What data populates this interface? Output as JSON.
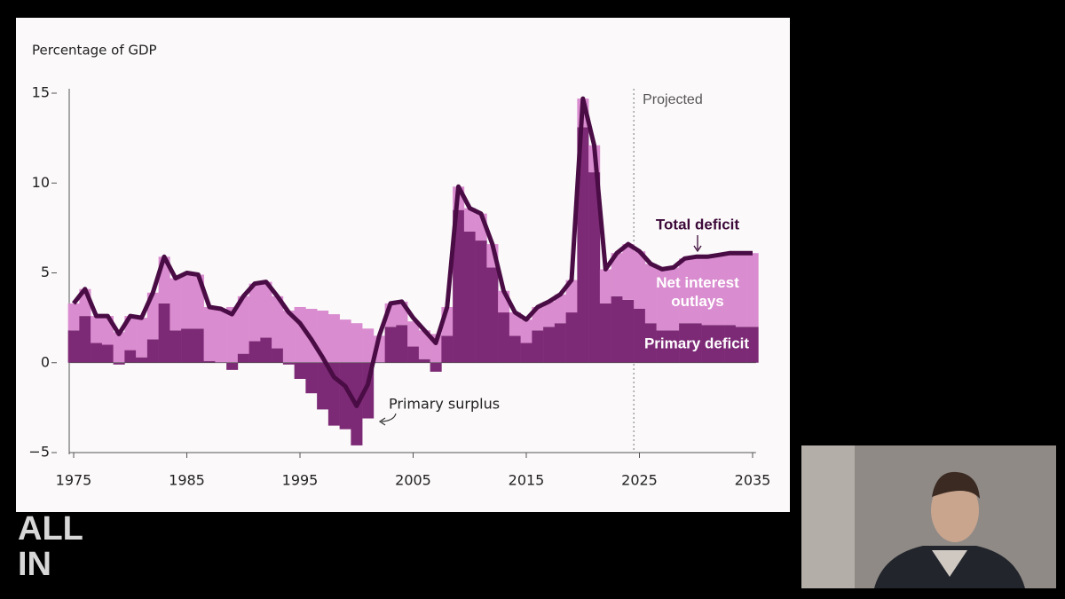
{
  "chart_data": {
    "type": "stacked-bar-line",
    "y_label": "Percentage of GDP",
    "x": [
      1975,
      1976,
      1977,
      1978,
      1979,
      1980,
      1981,
      1982,
      1983,
      1984,
      1985,
      1986,
      1987,
      1988,
      1989,
      1990,
      1991,
      1992,
      1993,
      1994,
      1995,
      1996,
      1997,
      1998,
      1999,
      2000,
      2001,
      2002,
      2003,
      2004,
      2005,
      2006,
      2007,
      2008,
      2009,
      2010,
      2011,
      2012,
      2013,
      2014,
      2015,
      2016,
      2017,
      2018,
      2019,
      2020,
      2021,
      2022,
      2023,
      2024,
      2025,
      2026,
      2027,
      2028,
      2029,
      2030,
      2031,
      2032,
      2033,
      2034,
      2035
    ],
    "series": [
      {
        "name": "Primary deficit",
        "color": "#7d2a76",
        "kind": "bar",
        "values": [
          1.8,
          2.6,
          1.1,
          1.0,
          -0.1,
          0.7,
          0.3,
          1.3,
          3.3,
          1.8,
          1.9,
          1.9,
          0.1,
          0.0,
          -0.4,
          0.5,
          1.2,
          1.4,
          0.8,
          -0.1,
          -0.9,
          -1.7,
          -2.6,
          -3.5,
          -3.7,
          -4.6,
          -3.1,
          0.0,
          2.0,
          2.1,
          0.9,
          0.2,
          -0.5,
          1.5,
          8.5,
          7.3,
          6.8,
          5.3,
          2.8,
          1.5,
          1.1,
          1.8,
          2.0,
          2.2,
          2.8,
          13.1,
          10.6,
          3.3,
          3.7,
          3.5,
          3.0,
          2.2,
          1.8,
          1.8,
          2.2,
          2.2,
          2.1,
          2.1,
          2.1,
          2.0,
          2.0
        ]
      },
      {
        "name": "Net interest outlays",
        "color": "#d98ccf",
        "kind": "bar",
        "values": [
          1.5,
          1.5,
          1.5,
          1.6,
          1.7,
          1.9,
          2.2,
          2.6,
          2.6,
          2.9,
          3.1,
          3.0,
          3.0,
          3.0,
          3.1,
          3.2,
          3.2,
          3.1,
          2.9,
          2.9,
          3.1,
          3.0,
          2.9,
          2.7,
          2.4,
          2.2,
          1.9,
          1.5,
          1.3,
          1.3,
          1.4,
          1.6,
          1.6,
          1.6,
          1.3,
          1.3,
          1.5,
          1.3,
          1.2,
          1.3,
          1.3,
          1.3,
          1.4,
          1.6,
          1.8,
          1.6,
          1.5,
          1.9,
          2.4,
          3.1,
          3.2,
          3.3,
          3.4,
          3.5,
          3.6,
          3.7,
          3.8,
          3.9,
          4.0,
          4.1,
          4.1
        ]
      },
      {
        "name": "Total deficit",
        "color": "#4a0c45",
        "kind": "line",
        "values": [
          3.3,
          4.1,
          2.6,
          2.6,
          1.6,
          2.6,
          2.5,
          3.9,
          5.9,
          4.7,
          5.0,
          4.9,
          3.1,
          3.0,
          2.7,
          3.7,
          4.4,
          4.5,
          3.7,
          2.8,
          2.2,
          1.3,
          0.3,
          -0.8,
          -1.3,
          -2.4,
          -1.2,
          1.5,
          3.3,
          3.4,
          2.5,
          1.8,
          1.1,
          3.1,
          9.8,
          8.6,
          8.3,
          6.6,
          4.0,
          2.8,
          2.4,
          3.1,
          3.4,
          3.8,
          4.6,
          14.7,
          12.1,
          5.2,
          6.1,
          6.6,
          6.2,
          5.5,
          5.2,
          5.3,
          5.8,
          5.9,
          5.9,
          6.0,
          6.1,
          6.1,
          6.1
        ]
      }
    ],
    "annotations": {
      "surplus": "Primary surplus",
      "projected": "Projected"
    },
    "projected_from": 2024.5,
    "xlim": [
      1974.6,
      2035.3
    ],
    "xticks": [
      1975,
      1985,
      1995,
      2005,
      2015,
      2025,
      2035
    ],
    "ylim": [
      -5,
      15
    ],
    "yticks": [
      {
        "value": -5,
        "label": "−5"
      },
      0,
      5,
      10,
      15
    ]
  },
  "overlay": {
    "logo": [
      "ALL",
      "IN"
    ]
  }
}
